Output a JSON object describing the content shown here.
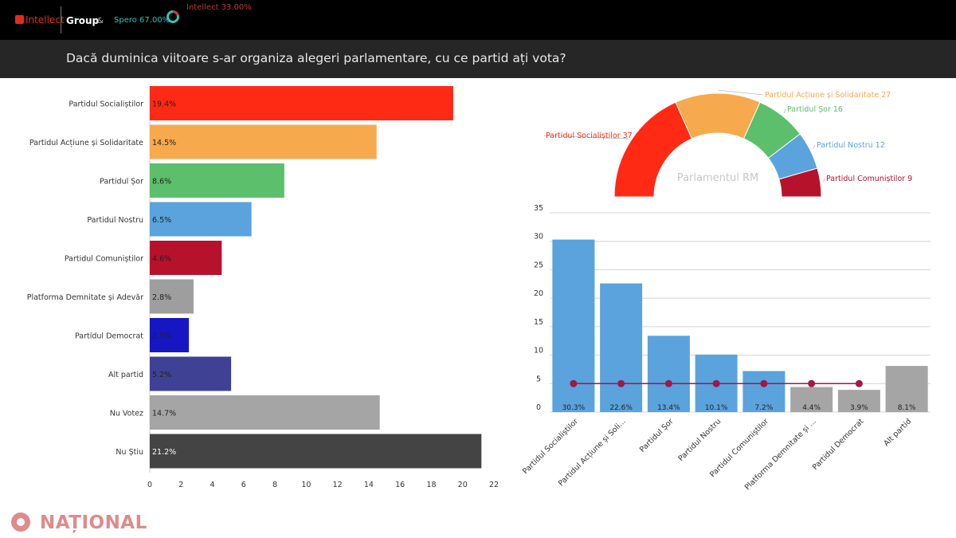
{
  "header": {
    "logo_intellect": "Intellect",
    "logo_group": "Group",
    "logo_amp": "&",
    "logo_spero": "Spero 67.00%",
    "logo_intellect_pct": "Intellect 33.00%"
  },
  "question": "Dacă duminica viitoare s-ar organiza alegeri parlamentare, cu ce partid ați vota?",
  "watermark": "NAȚIONAL",
  "chart_data": [
    {
      "type": "bar",
      "orientation": "horizontal",
      "categories": [
        "Partidul Socialiștilor",
        "Partidul Acțiune și Solidaritate",
        "Partidul Șor",
        "Partidul Nostru",
        "Partidul Comuniștilor",
        "Platforma Demnitate și Adevăr",
        "Partidul Democrat",
        "Alt partid",
        "Nu Votez",
        "Nu Știu"
      ],
      "values": [
        19.4,
        14.5,
        8.6,
        6.5,
        4.6,
        2.8,
        2.5,
        5.2,
        14.7,
        21.2
      ],
      "data_labels": [
        "19.4%",
        "14.5%",
        "8.6%",
        "6.5%",
        "4.6%",
        "2.8%",
        "2.5%",
        "5.2%",
        "14.7%",
        "21.2%"
      ],
      "colors": [
        "#ff2a14",
        "#f7a94d",
        "#5cbf6b",
        "#5aa3dc",
        "#b7122c",
        "#9e9e9e",
        "#1616c2",
        "#3f4194",
        "#a5a5a5",
        "#444444"
      ],
      "xlim": [
        0,
        22
      ],
      "xticks": [
        0,
        2,
        4,
        6,
        8,
        10,
        12,
        14,
        16,
        18,
        20,
        22
      ],
      "grid": false
    },
    {
      "type": "pie",
      "subtype": "semicircle",
      "title": "Parlamentul RM",
      "slices": [
        {
          "label": "Partidul Socialiștilor 37",
          "value": 37,
          "color": "#ff2a14"
        },
        {
          "label": "Partidul Acțiune și Solidaritate 27",
          "value": 27,
          "color": "#f7a94d"
        },
        {
          "label": "Partidul Șor 16",
          "value": 16,
          "color": "#5cbf6b"
        },
        {
          "label": "Partidul Nostru 12",
          "value": 12,
          "color": "#5aa3dc"
        },
        {
          "label": "Partidul Comuniștilor 9",
          "value": 9,
          "color": "#b7122c"
        }
      ]
    },
    {
      "type": "bar",
      "categories": [
        "Partidul Socialiștilor",
        "Partidul Acțiune și Soli...",
        "Partidul Șor",
        "Partidul Nostru",
        "Partidul Comuniștilor",
        "Platforma Demnitate și ...",
        "Partidul Democrat",
        "Alt partid"
      ],
      "values": [
        30.3,
        22.6,
        13.4,
        10.1,
        7.2,
        4.4,
        3.9,
        8.1
      ],
      "data_labels": [
        "30.3%",
        "22.6%",
        "13.4%",
        "10.1%",
        "7.2%",
        "4.4%",
        "3.9%",
        "8.1%"
      ],
      "bar_colors": [
        "#5aa3dc",
        "#5aa3dc",
        "#5aa3dc",
        "#5aa3dc",
        "#5aa3dc",
        "#a5a5a5",
        "#a5a5a5",
        "#a5a5a5"
      ],
      "threshold_line": {
        "value": 5,
        "color": "#a0174a",
        "points": 7
      },
      "ylim": [
        0,
        35
      ],
      "yticks": [
        0,
        5,
        10,
        15,
        20,
        25,
        30,
        35
      ],
      "grid": true
    }
  ]
}
